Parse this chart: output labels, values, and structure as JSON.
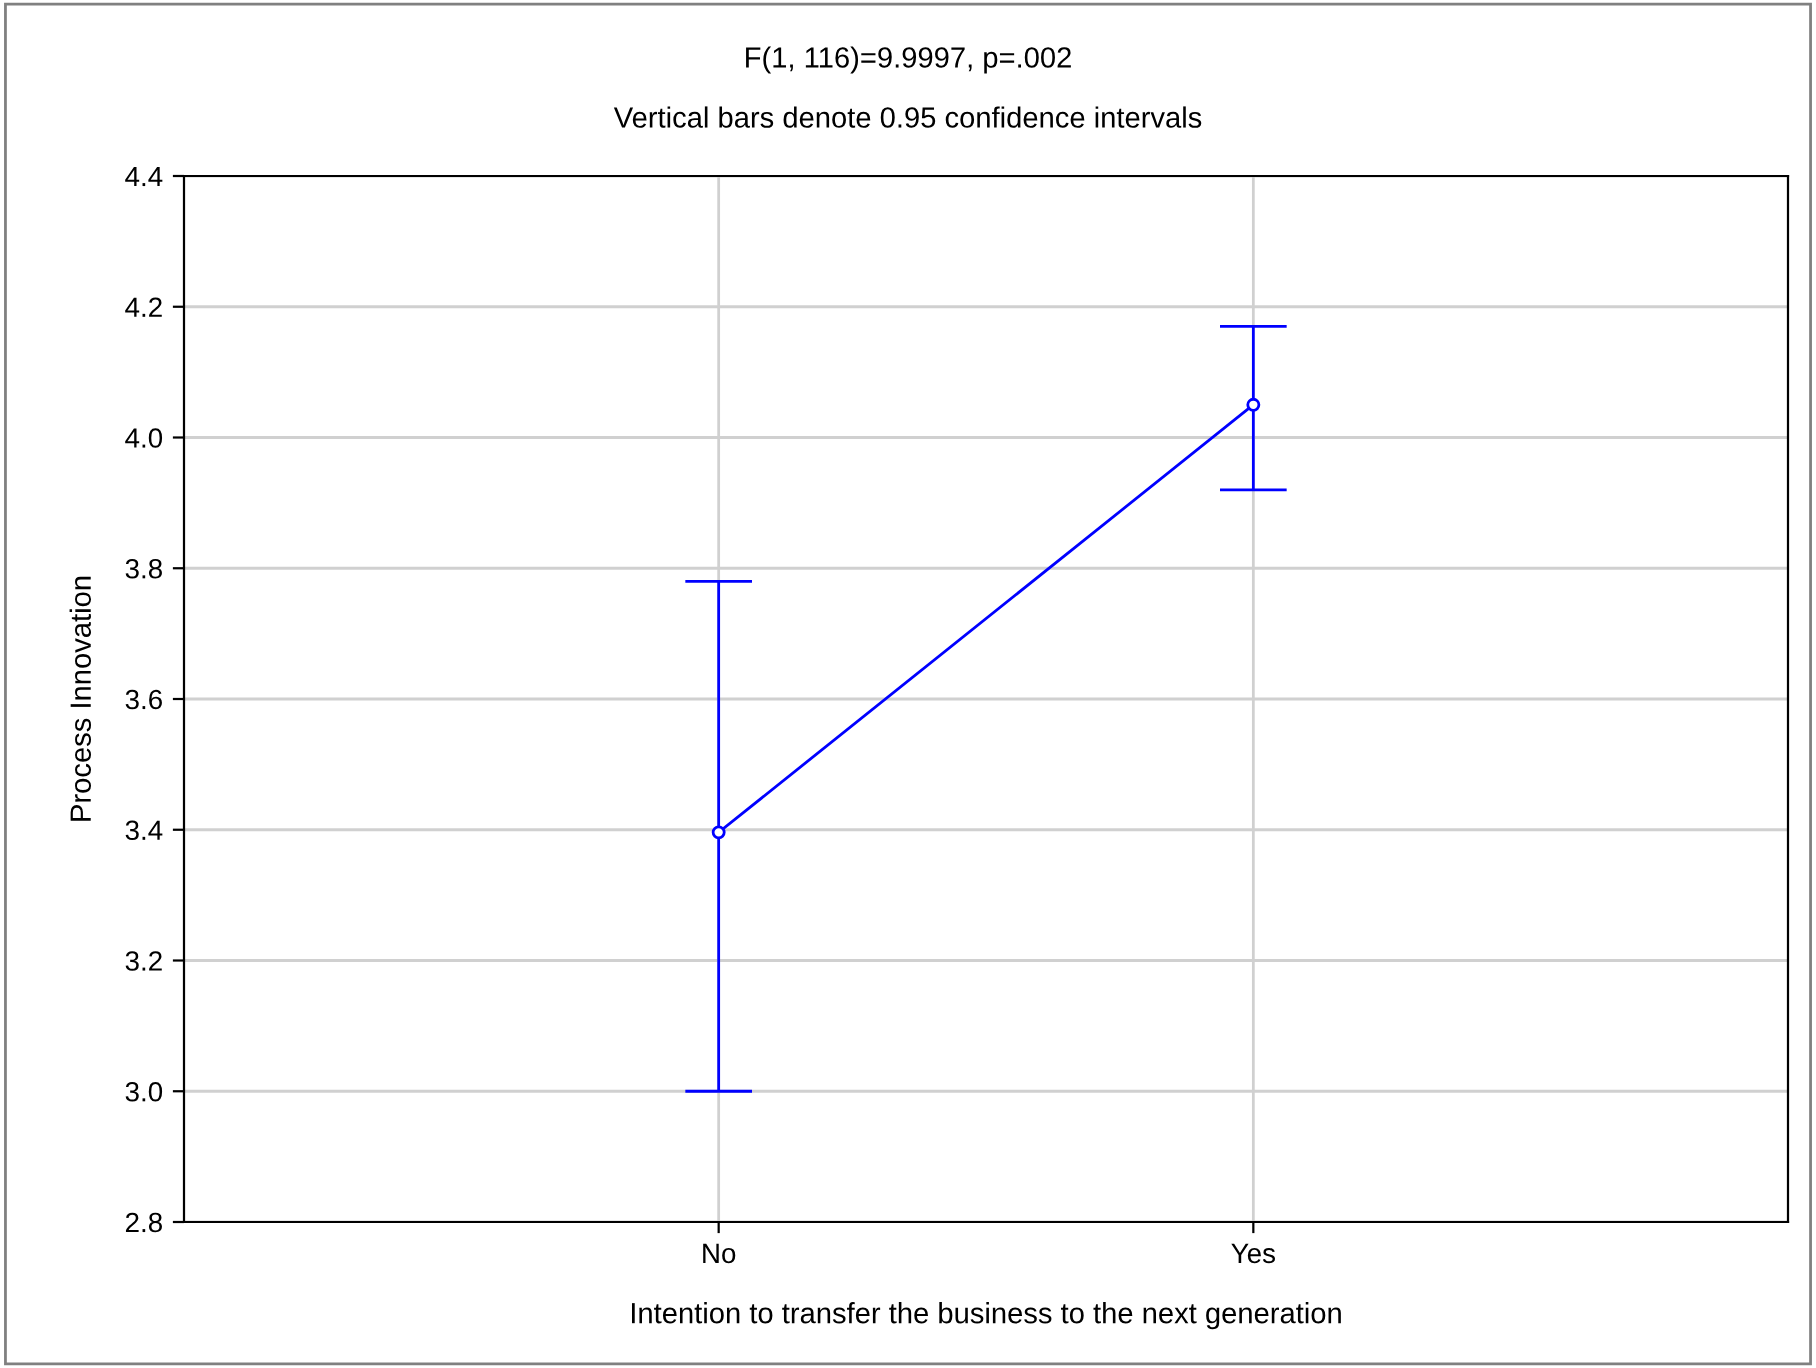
{
  "chart_data": {
    "type": "line",
    "title": "F(1, 116)=9.9997, p=.002",
    "subtitle": "Vertical bars denote 0.95 confidence intervals",
    "xlabel": "Intention to transfer the business to the next generation",
    "ylabel": "Process Innovation",
    "categories": [
      "No",
      "Yes"
    ],
    "series": [
      {
        "color": "#0000ff",
        "values": [
          3.396,
          4.05
        ],
        "errors": [
          [
            3.0,
            3.78
          ],
          [
            3.92,
            4.17
          ]
        ]
      }
    ],
    "ylim": [
      2.8,
      4.4
    ],
    "yticks": [
      {
        "value": 2.8,
        "label": "2.8"
      },
      {
        "value": 3.0,
        "label": "3.0"
      },
      {
        "value": 3.2,
        "label": "3.2"
      },
      {
        "value": 3.4,
        "label": "3.4"
      },
      {
        "value": 3.6,
        "label": "3.6"
      },
      {
        "value": 3.8,
        "label": "3.8"
      },
      {
        "value": 4.0,
        "label": "4.0"
      },
      {
        "value": 4.2,
        "label": "4.2"
      },
      {
        "value": 4.4,
        "label": "4.4"
      }
    ],
    "grid": true,
    "marker": "circle",
    "line_style": "solid"
  }
}
